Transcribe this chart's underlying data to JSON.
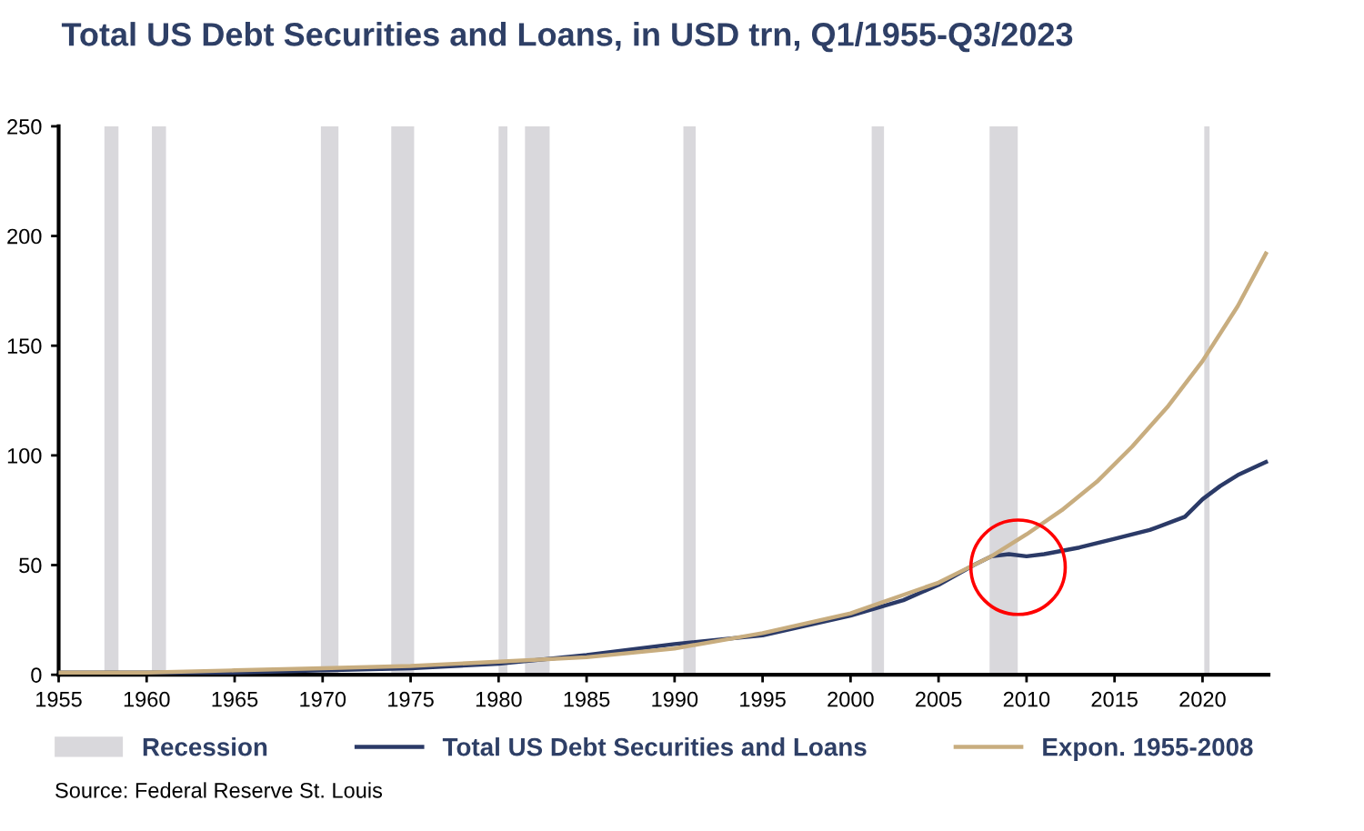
{
  "chart_data": {
    "type": "line",
    "title": "Total US Debt Securities and Loans, in USD trn, Q1/1955-Q3/2023",
    "series": [
      {
        "name": "Total US Debt Securities and Loans",
        "color": "#2b3a67",
        "x": [
          1955,
          1960,
          1965,
          1970,
          1975,
          1980,
          1985,
          1990,
          1995,
          2000,
          2003,
          2005,
          2007,
          2008,
          2009,
          2010,
          2011,
          2013,
          2015,
          2017,
          2019,
          2020,
          2021,
          2022,
          2023.6
        ],
        "values": [
          1,
          1,
          1,
          2,
          3,
          5,
          9,
          14,
          18,
          27,
          34,
          41,
          50,
          54,
          55,
          54,
          55,
          58,
          62,
          66,
          72,
          80,
          86,
          91,
          97
        ]
      },
      {
        "name": "Expon. 1955-2008",
        "color": "#c8ad7f",
        "x": [
          1955,
          1960,
          1965,
          1970,
          1975,
          1980,
          1985,
          1990,
          1995,
          2000,
          2005,
          2008,
          2010,
          2012,
          2014,
          2016,
          2018,
          2020,
          2022,
          2023.6
        ],
        "values": [
          1,
          1,
          2,
          3,
          4,
          6,
          8,
          12,
          19,
          28,
          42,
          54,
          64,
          75,
          88,
          104,
          122,
          143,
          168,
          192
        ]
      }
    ],
    "bands": [
      {
        "axis": "x",
        "from": 1957.6,
        "to": 1958.4,
        "label": "Recession",
        "color": "#d9d8dc"
      },
      {
        "axis": "x",
        "from": 1960.3,
        "to": 1961.1,
        "color": "#d9d8dc"
      },
      {
        "axis": "x",
        "from": 1969.9,
        "to": 1970.9,
        "color": "#d9d8dc"
      },
      {
        "axis": "x",
        "from": 1973.9,
        "to": 1975.2,
        "color": "#d9d8dc"
      },
      {
        "axis": "x",
        "from": 1980.0,
        "to": 1980.5,
        "color": "#d9d8dc"
      },
      {
        "axis": "x",
        "from": 1981.5,
        "to": 1982.9,
        "color": "#d9d8dc"
      },
      {
        "axis": "x",
        "from": 1990.5,
        "to": 1991.2,
        "color": "#d9d8dc"
      },
      {
        "axis": "x",
        "from": 2001.2,
        "to": 2001.9,
        "color": "#d9d8dc"
      },
      {
        "axis": "x",
        "from": 2007.9,
        "to": 2009.5,
        "color": "#d9d8dc"
      },
      {
        "axis": "x",
        "from": 2020.1,
        "to": 2020.4,
        "color": "#d9d8dc"
      }
    ],
    "xlim": [
      1955,
      2023.75
    ],
    "xticks": [
      1955,
      1960,
      1965,
      1970,
      1975,
      1980,
      1985,
      1990,
      1995,
      2000,
      2005,
      2010,
      2015,
      2020
    ],
    "ylim": [
      0,
      250
    ],
    "yticks": [
      0,
      50,
      100,
      150,
      200,
      250
    ],
    "grid": false,
    "legend": "bottom",
    "marker": "none",
    "line_style": "solid",
    "annotations": [
      "Source: Federal Reserve St. Louis"
    ]
  }
}
